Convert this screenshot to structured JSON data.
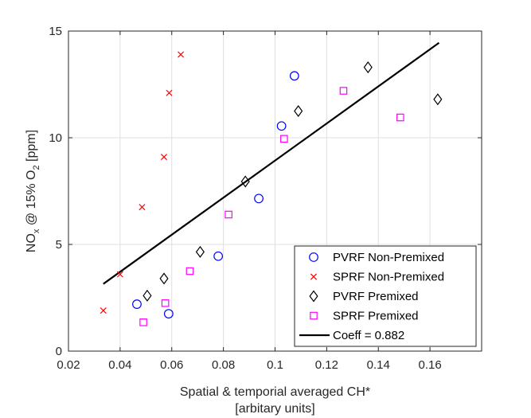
{
  "chart_data": {
    "type": "scatter",
    "xlabel_line1": "Spatial & temporial averaged CH*",
    "xlabel_line2": "[arbitary units]",
    "ylabel": {
      "base": "NO",
      "sub1": "x",
      "mid": " @ 15% O",
      "sub2": "2",
      "end": " [ppm]"
    },
    "xlim": [
      0.02,
      0.18
    ],
    "ylim": [
      0,
      15
    ],
    "xticks": [
      0.02,
      0.04,
      0.06,
      0.08,
      0.1,
      0.12,
      0.14,
      0.16
    ],
    "xtick_labels": [
      "0.02",
      "0.04",
      "0.06",
      "0.08",
      "0.1",
      "0.12",
      "0.14",
      "0.16"
    ],
    "yticks": [
      0,
      5,
      10,
      15
    ],
    "ytick_labels": [
      "0",
      "5",
      "10",
      "15"
    ],
    "grid": true,
    "legend_position": "bottom-right",
    "series": [
      {
        "name": "PVRF Non-Premixed",
        "marker": "circle",
        "color": "#0000ff",
        "points": [
          [
            0.0465,
            2.2
          ],
          [
            0.0588,
            1.75
          ],
          [
            0.078,
            4.45
          ],
          [
            0.0937,
            7.15
          ],
          [
            0.1025,
            10.55
          ],
          [
            0.1075,
            12.9
          ]
        ]
      },
      {
        "name": "SPRF Non-Premixed",
        "marker": "x",
        "color": "#ff0000",
        "points": [
          [
            0.0335,
            1.9
          ],
          [
            0.04,
            3.6
          ],
          [
            0.0485,
            6.75
          ],
          [
            0.057,
            9.1
          ],
          [
            0.059,
            12.1
          ],
          [
            0.0635,
            13.9
          ]
        ]
      },
      {
        "name": "PVRF Premixed",
        "marker": "diamond",
        "color": "#000000",
        "points": [
          [
            0.0505,
            2.6
          ],
          [
            0.057,
            3.4
          ],
          [
            0.071,
            4.65
          ],
          [
            0.0885,
            7.95
          ],
          [
            0.109,
            11.25
          ],
          [
            0.136,
            13.3
          ],
          [
            0.163,
            11.8
          ]
        ]
      },
      {
        "name": "SPRF Premixed",
        "marker": "square",
        "color": "#ff00ff",
        "points": [
          [
            0.049,
            1.35
          ],
          [
            0.0575,
            2.25
          ],
          [
            0.067,
            3.75
          ],
          [
            0.082,
            6.4
          ],
          [
            0.1035,
            9.95
          ],
          [
            0.1265,
            12.2
          ],
          [
            0.1485,
            10.95
          ]
        ]
      },
      {
        "name": "Coeff = 0.882",
        "marker": "line",
        "color": "#000000",
        "points": [
          [
            0.0335,
            3.15
          ],
          [
            0.1635,
            14.45
          ]
        ]
      }
    ]
  }
}
